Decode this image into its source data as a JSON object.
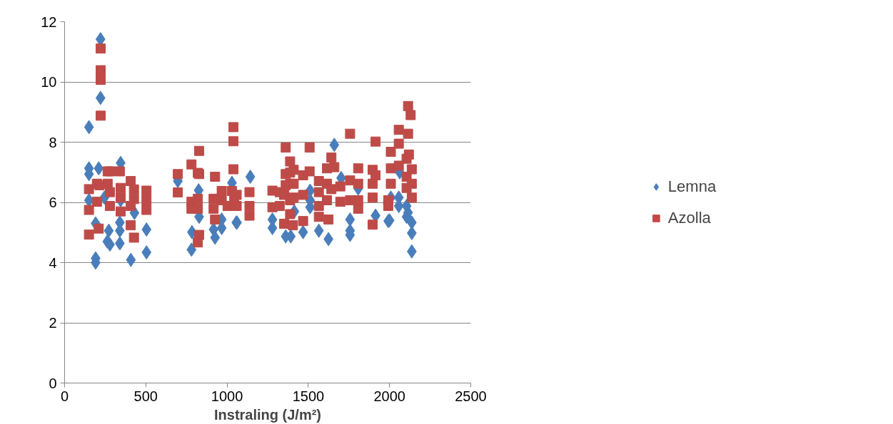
{
  "chart_data": {
    "type": "scatter",
    "xlabel": "Instraling (J/m²)",
    "xlim": [
      0,
      2500
    ],
    "xticks": [
      0,
      500,
      1000,
      1500,
      2000,
      2500
    ],
    "ylim": [
      0,
      12
    ],
    "yticks": [
      0,
      2,
      4,
      6,
      8,
      10,
      12
    ],
    "grid": "y",
    "legend": "right",
    "series": [
      {
        "name": "Lemna",
        "color": "#4a7ebb",
        "marker": "diamond",
        "x": [
          221,
          221,
          150,
          150,
          150,
          210,
          191,
          191,
          191,
          272,
          263,
          279,
          345,
          340,
          340,
          340,
          408,
          430,
          504,
          504,
          150,
          245,
          345,
          697,
          784,
          781,
          825,
          828,
          917,
          926,
          967,
          967,
          1030,
          1057,
          1143,
          1061,
          1279,
          1279,
          1361,
          1392,
          1414,
          1468,
          1511,
          1511,
          1511,
          1565,
          1624,
          1660,
          1702,
          1757,
          1757,
          1757,
          1807,
          1914,
          1992,
          2008,
          2057,
          2057,
          2063,
          2000,
          2105,
          2114,
          2105,
          2137,
          2137,
          2137
        ],
        "values": [
          11.42,
          9.47,
          8.5,
          7.13,
          6.94,
          7.13,
          5.3,
          4.14,
          4.0,
          5.06,
          4.7,
          4.6,
          7.31,
          5.33,
          5.06,
          4.64,
          4.09,
          5.65,
          5.1,
          4.34,
          6.07,
          6.16,
          6.07,
          6.71,
          5.01,
          4.43,
          6.4,
          5.52,
          5.1,
          4.83,
          5.43,
          5.15,
          6.65,
          5.33,
          6.85,
          5.33,
          5.43,
          5.15,
          4.87,
          4.87,
          5.7,
          5.01,
          6.39,
          6.07,
          5.84,
          5.06,
          4.78,
          7.91,
          6.81,
          5.43,
          5.06,
          4.92,
          6.46,
          5.56,
          5.38,
          6.16,
          6.16,
          5.88,
          7.0,
          5.4,
          5.88,
          5.66,
          5.52,
          5.33,
          4.98,
          4.37
        ]
      },
      {
        "name": "Azolla",
        "color": "#be4b48",
        "marker": "square",
        "x": [
          222,
          222,
          222,
          222,
          150,
          150,
          150,
          199,
          199,
          210,
          215,
          265,
          282,
          265,
          279,
          279,
          340,
          345,
          345,
          345,
          407,
          427,
          427,
          407,
          407,
          427,
          504,
          504,
          504,
          697,
          697,
          781,
          781,
          781,
          828,
          820,
          828,
          820,
          820,
          828,
          820,
          926,
          917,
          917,
          926,
          967,
          967,
          1003,
          1039,
          1039,
          1039,
          1030,
          1044,
          1059,
          1059,
          1138,
          1138,
          1138,
          1279,
          1279,
          1324,
          1324,
          1351,
          1351,
          1361,
          1361,
          1361,
          1388,
          1388,
          1388,
          1388,
          1388,
          1405,
          1410,
          1410,
          1410,
          1468,
          1468,
          1468,
          1508,
          1508,
          1565,
          1565,
          1565,
          1565,
          1615,
          1615,
          1615,
          1624,
          1642,
          1660,
          1642,
          1697,
          1697,
          1757,
          1757,
          1757,
          1807,
          1807,
          1807,
          1807,
          1896,
          1896,
          1896,
          1896,
          1914,
          1914,
          1992,
          1992,
          2008,
          2008,
          2008,
          2057,
          2057,
          2057,
          2114,
          2114,
          2130,
          2105,
          2105,
          2105,
          2119,
          2137,
          2137,
          2137
        ],
        "values": [
          11.11,
          10.39,
          10.07,
          8.88,
          6.44,
          5.75,
          4.93,
          6.62,
          6.02,
          5.13,
          6.57,
          7.03,
          7.03,
          6.62,
          6.34,
          5.88,
          7.03,
          6.48,
          6.16,
          5.7,
          6.71,
          6.43,
          6.11,
          5.88,
          5.24,
          4.83,
          6.39,
          6.07,
          5.75,
          6.94,
          6.33,
          7.26,
          6.02,
          5.79,
          7.71,
          6.98,
          6.94,
          6.12,
          5.79,
          4.92,
          4.67,
          6.85,
          6.12,
          5.79,
          5.43,
          6.38,
          6.07,
          5.88,
          8.5,
          8.03,
          7.1,
          6.38,
          6.07,
          6.25,
          5.88,
          6.34,
          5.88,
          5.56,
          6.39,
          5.84,
          6.34,
          5.88,
          6.25,
          5.29,
          7.82,
          6.94,
          6.57,
          7.36,
          6.99,
          6.62,
          6.07,
          5.61,
          5.24,
          7.08,
          6.62,
          6.16,
          6.9,
          6.25,
          5.38,
          7.82,
          7.03,
          6.71,
          6.34,
          5.88,
          5.52,
          7.13,
          6.62,
          6.07,
          5.43,
          7.49,
          7.17,
          6.44,
          6.53,
          6.02,
          8.28,
          6.73,
          6.07,
          7.13,
          6.62,
          6.07,
          5.79,
          7.08,
          6.62,
          6.16,
          5.26,
          8.02,
          6.9,
          6.07,
          5.88,
          7.68,
          7.13,
          6.62,
          8.41,
          7.95,
          7.22,
          9.2,
          8.28,
          8.9,
          7.45,
          6.85,
          6.48,
          7.59,
          7.1,
          6.62,
          6.16
        ]
      }
    ]
  }
}
